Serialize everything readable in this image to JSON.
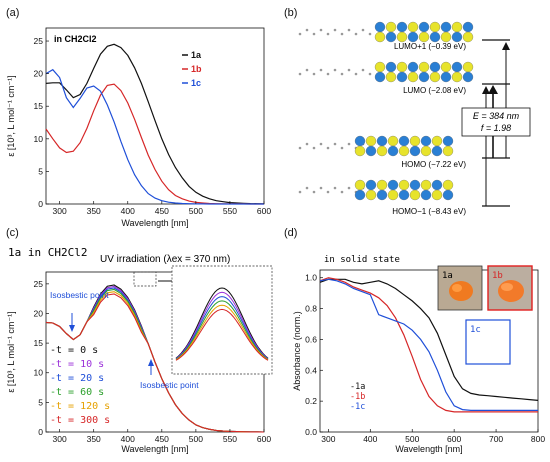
{
  "panel_labels": [
    "(a)",
    "(b)",
    "(c)",
    "(d)"
  ],
  "chart_data": [
    {
      "panel": "(a)",
      "type": "line",
      "inset_label": "in CH2Cl2",
      "xlabel": "Wavelength [nm]",
      "ylabel": "ε [10³, L mol⁻¹ cm⁻¹]",
      "xlim": [
        280,
        600
      ],
      "ylim": [
        0,
        27
      ],
      "xticks": [
        300,
        350,
        400,
        450,
        500,
        550,
        600
      ],
      "yticks": [
        0,
        5,
        10,
        15,
        20,
        25
      ],
      "legend_position": "top-right",
      "series": [
        {
          "name": "1a",
          "color": "#111111",
          "x": [
            280,
            290,
            300,
            310,
            320,
            330,
            340,
            350,
            360,
            370,
            380,
            390,
            400,
            410,
            420,
            430,
            440,
            450,
            460,
            470,
            480,
            490,
            500,
            510,
            520,
            530,
            540,
            550,
            560,
            570,
            580,
            590,
            600
          ],
          "y": [
            18.5,
            18.6,
            18.6,
            17.5,
            16.3,
            16.8,
            18.5,
            20.8,
            23.0,
            24.2,
            24.5,
            24.0,
            22.8,
            20.9,
            18.5,
            15.7,
            12.8,
            10.0,
            7.6,
            5.6,
            4.0,
            2.7,
            1.8,
            1.2,
            0.8,
            0.5,
            0.35,
            0.22,
            0.15,
            0.1,
            0.06,
            0.04,
            0.02
          ]
        },
        {
          "name": "1b",
          "color": "#d62728",
          "x": [
            280,
            290,
            300,
            310,
            320,
            330,
            340,
            350,
            360,
            370,
            380,
            390,
            400,
            410,
            420,
            430,
            440,
            450,
            460,
            470,
            480,
            490,
            500,
            510,
            520,
            530,
            540,
            550,
            560,
            570,
            580,
            590,
            600
          ],
          "y": [
            11.5,
            10.0,
            8.6,
            7.9,
            8.1,
            9.4,
            11.6,
            14.3,
            16.7,
            18.2,
            18.4,
            17.4,
            15.5,
            13.0,
            10.2,
            7.5,
            5.3,
            3.5,
            2.2,
            1.3,
            0.8,
            0.45,
            0.25,
            0.15,
            0.08,
            0.05,
            0.03,
            0.02,
            0.01,
            0.01,
            0,
            0,
            0
          ]
        },
        {
          "name": "1c",
          "color": "#1f4fd8",
          "x": [
            280,
            290,
            300,
            310,
            320,
            330,
            340,
            350,
            360,
            370,
            380,
            390,
            400,
            410,
            420,
            430,
            440,
            450,
            460,
            470,
            480,
            490,
            500,
            510,
            520,
            530,
            540,
            550,
            560,
            570,
            580,
            590,
            600
          ],
          "y": [
            20.0,
            20.6,
            19.4,
            16.3,
            14.8,
            16.2,
            17.8,
            18.1,
            17.3,
            15.2,
            12.6,
            9.6,
            6.8,
            4.5,
            2.8,
            1.6,
            0.9,
            0.5,
            0.28,
            0.15,
            0.08,
            0.04,
            0.02,
            0.01,
            0,
            0,
            0,
            0,
            0,
            0,
            0,
            0,
            0
          ]
        }
      ]
    },
    {
      "panel": "(b)",
      "type": "diagram",
      "orbitals": [
        {
          "label": "LUMO+1 (−0.39 eV)"
        },
        {
          "label": "LUMO (−2.08 eV)"
        },
        {
          "label": "HOMO (−7.22 eV)"
        },
        {
          "label": "HOMO−1 (−8.43 eV)"
        }
      ],
      "transition_box": {
        "line1": "E = 384 nm",
        "line2": "f = 1.98"
      }
    },
    {
      "panel": "(c)",
      "type": "line",
      "inset_label": "1a in CH2Cl2",
      "title": "UV irradiation (λex = 370 nm)",
      "xlabel": "Wavelength [nm]",
      "ylabel": "ε [10³, L mol⁻¹ cm⁻¹]",
      "xlim": [
        280,
        600
      ],
      "ylim": [
        0,
        27
      ],
      "xticks": [
        300,
        350,
        400,
        450,
        500,
        550,
        600
      ],
      "yticks": [
        0,
        5,
        10,
        15,
        20,
        25
      ],
      "annotations": [
        "Isosbestic point",
        "Isosbestic point"
      ],
      "legend_position": "bottom-left",
      "series": [
        {
          "name": "t = 0 s",
          "color": "#111111",
          "scale": 1.0
        },
        {
          "name": "t = 10 s",
          "color": "#9b30d9",
          "scale": 0.99
        },
        {
          "name": "t = 20 s",
          "color": "#1f4fd8",
          "scale": 0.98
        },
        {
          "name": "t = 60 s",
          "color": "#2ca02c",
          "scale": 0.97
        },
        {
          "name": "t = 120 s",
          "color": "#e6a100",
          "scale": 0.955
        },
        {
          "name": "t = 300 s",
          "color": "#d62728",
          "scale": 0.94
        }
      ],
      "base_x": [
        280,
        290,
        300,
        310,
        320,
        330,
        340,
        350,
        360,
        370,
        380,
        390,
        400,
        410,
        420,
        430,
        440,
        450,
        460,
        470,
        480,
        490,
        500,
        510,
        520,
        530,
        540,
        550,
        560,
        570,
        580,
        590,
        600
      ],
      "base_y": [
        18.5,
        18.4,
        17.8,
        16.6,
        15.6,
        16.4,
        18.6,
        21.1,
        23.3,
        24.6,
        24.8,
        24.1,
        22.7,
        20.6,
        17.9,
        14.9,
        11.8,
        9.0,
        6.6,
        4.6,
        3.1,
        2.0,
        1.2,
        0.75,
        0.45,
        0.27,
        0.16,
        0.1,
        0.06,
        0.03,
        0.02,
        0.01,
        0
      ]
    },
    {
      "panel": "(d)",
      "type": "line",
      "inset_label": "in solid state",
      "xlabel": "Wavelength [nm]",
      "ylabel": "Absorbance (norm.)",
      "xlim": [
        280,
        800
      ],
      "ylim": [
        0,
        1.05
      ],
      "xticks": [
        300,
        400,
        500,
        600,
        700,
        800
      ],
      "yticks": [
        0.0,
        0.2,
        0.4,
        0.6,
        0.8,
        1.0
      ],
      "photo_labels": [
        "1a",
        "1b",
        "1c"
      ],
      "legend_position": "bottom-left",
      "series": [
        {
          "name": "1a",
          "color": "#111111",
          "x": [
            280,
            300,
            320,
            340,
            360,
            380,
            400,
            420,
            440,
            460,
            480,
            500,
            520,
            540,
            560,
            580,
            600,
            620,
            640,
            660,
            680,
            700,
            720,
            740,
            760,
            780,
            800
          ],
          "y": [
            0.97,
            0.99,
            0.99,
            0.99,
            0.97,
            0.96,
            0.97,
            0.98,
            0.96,
            0.93,
            0.89,
            0.85,
            0.8,
            0.74,
            0.64,
            0.5,
            0.36,
            0.28,
            0.25,
            0.24,
            0.235,
            0.23,
            0.225,
            0.22,
            0.215,
            0.21,
            0.205
          ]
        },
        {
          "name": "1b",
          "color": "#d62728",
          "x": [
            280,
            300,
            320,
            340,
            360,
            380,
            400,
            420,
            440,
            460,
            480,
            500,
            520,
            540,
            560,
            580,
            600,
            620,
            640,
            660,
            680,
            700,
            720,
            740,
            760,
            780,
            800
          ],
          "y": [
            0.98,
            1.0,
            0.99,
            0.97,
            0.94,
            0.92,
            0.9,
            0.87,
            0.82,
            0.74,
            0.63,
            0.49,
            0.34,
            0.23,
            0.17,
            0.14,
            0.13,
            0.13,
            0.13,
            0.13,
            0.13,
            0.13,
            0.13,
            0.13,
            0.13,
            0.13,
            0.13
          ]
        },
        {
          "name": "1c",
          "color": "#1f4fd8",
          "x": [
            280,
            300,
            320,
            340,
            360,
            380,
            400,
            420,
            440,
            460,
            480,
            500,
            520,
            540,
            560,
            580,
            600,
            620,
            640,
            660,
            680,
            700,
            720,
            740,
            760,
            780,
            800
          ],
          "y": [
            0.98,
            0.99,
            0.98,
            0.96,
            0.93,
            0.91,
            0.89,
            0.76,
            0.74,
            0.72,
            0.7,
            0.66,
            0.6,
            0.52,
            0.4,
            0.26,
            0.17,
            0.145,
            0.14,
            0.14,
            0.14,
            0.14,
            0.14,
            0.14,
            0.14,
            0.14,
            0.14
          ]
        }
      ]
    }
  ]
}
